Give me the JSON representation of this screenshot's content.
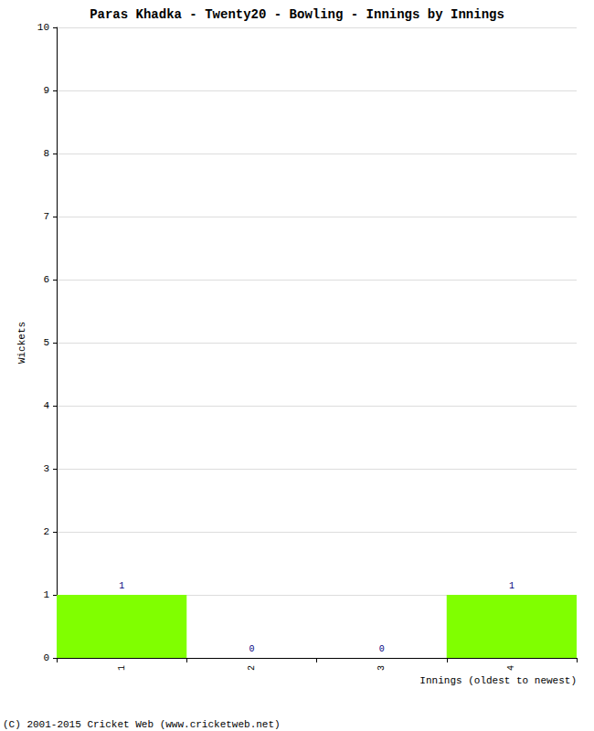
{
  "chart_data": {
    "type": "bar",
    "title": "Paras Khadka - Twenty20 - Bowling - Innings by Innings",
    "x_label": "Innings (oldest to newest)",
    "y_label": "Wickets",
    "categories": [
      "1",
      "2",
      "3",
      "4"
    ],
    "values": [
      1,
      0,
      0,
      1
    ],
    "color": "#80ff00",
    "ylim": [
      0,
      10
    ],
    "yticks": [
      0,
      1,
      2,
      3,
      4,
      5,
      6,
      7,
      8,
      9,
      10
    ],
    "grid": true,
    "data_labels": true,
    "annotations": [
      "(C) 2001-2015 Cricket Web (www.cricketweb.net)"
    ]
  }
}
